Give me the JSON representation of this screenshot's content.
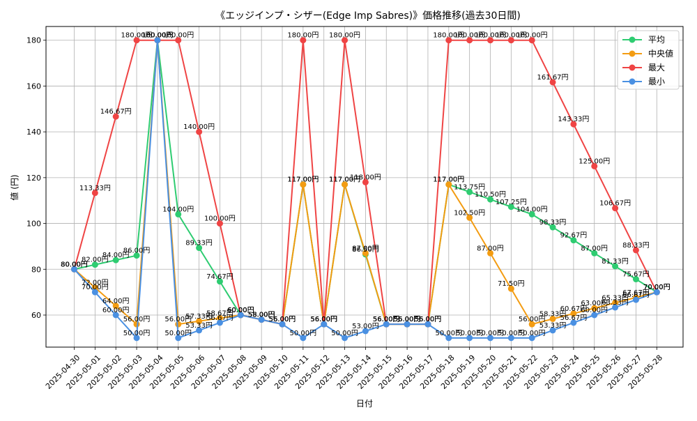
{
  "chart_data": {
    "type": "line",
    "title": "《エッジインプ・シザー(Edge Imp Sabres)》価格推移(過去30日間)",
    "xlabel": "日付",
    "ylabel": "値 (円)",
    "value_suffix": "円",
    "ylim": [
      46,
      186
    ],
    "yticks": [
      60,
      80,
      100,
      120,
      140,
      160,
      180
    ],
    "grid": true,
    "legend_position": "top-right",
    "categories": [
      "2025-04-30",
      "2025-05-01",
      "2025-05-02",
      "2025-05-03",
      "2025-05-04",
      "2025-05-05",
      "2025-05-06",
      "2025-05-07",
      "2025-05-08",
      "2025-05-09",
      "2025-05-10",
      "2025-05-11",
      "2025-05-12",
      "2025-05-13",
      "2025-05-14",
      "2025-05-15",
      "2025-05-16",
      "2025-05-17",
      "2025-05-18",
      "2025-05-19",
      "2025-05-20",
      "2025-05-21",
      "2025-05-22",
      "2025-05-23",
      "2025-05-24",
      "2025-05-25",
      "2025-05-26",
      "2025-05-27",
      "2025-05-28"
    ],
    "series": [
      {
        "name": "平均",
        "color": "#2ecc71",
        "values": [
          80.0,
          82.0,
          84.0,
          86.0,
          180.0,
          104.0,
          89.33,
          74.67,
          60.0,
          58.0,
          56.0,
          117.0,
          56.0,
          117.0,
          86.5,
          56.0,
          56.0,
          56.0,
          117.0,
          113.75,
          110.5,
          107.25,
          104.0,
          98.33,
          92.67,
          87.0,
          81.33,
          75.67,
          70.0
        ]
      },
      {
        "name": "中央値",
        "color": "#f39c12",
        "values": [
          80.0,
          72.0,
          64.0,
          56.0,
          180.0,
          56.0,
          57.33,
          58.67,
          60.0,
          58.0,
          56.0,
          117.0,
          56.0,
          117.0,
          87.0,
          56.0,
          56.0,
          56.0,
          117.0,
          102.5,
          87.0,
          71.5,
          56.0,
          58.33,
          60.67,
          63.0,
          65.33,
          67.67,
          70.0
        ]
      },
      {
        "name": "最大",
        "color": "#ef4444",
        "values": [
          80.0,
          113.33,
          146.67,
          180.0,
          180.0,
          180.0,
          140.0,
          100.0,
          60.0,
          58.0,
          56.0,
          180.0,
          56.0,
          180.0,
          118.0,
          56.0,
          56.0,
          56.0,
          180.0,
          180.0,
          180.0,
          180.0,
          180.0,
          161.67,
          143.33,
          125.0,
          106.67,
          88.33,
          70.0
        ]
      },
      {
        "name": "最小",
        "color": "#4a90e2",
        "values": [
          80.0,
          70.0,
          60.0,
          50.0,
          180.0,
          50.0,
          53.33,
          56.67,
          60.0,
          58.0,
          56.0,
          50.0,
          56.0,
          50.0,
          53.0,
          56.0,
          56.0,
          56.0,
          50.0,
          50.0,
          50.0,
          50.0,
          50.0,
          53.33,
          56.67,
          60.0,
          63.33,
          66.67,
          70.0
        ]
      }
    ]
  }
}
